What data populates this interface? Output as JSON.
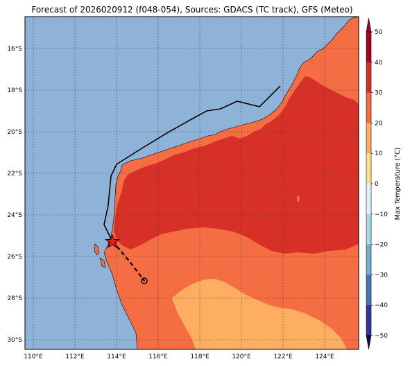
{
  "title": "Forecast of 2026020912 (f048-054), Sources: GDACS (TC track), GFS (Meteo)",
  "map": {
    "lat_labels": [
      "16°S",
      "18°S",
      "20°S",
      "22°S",
      "24°S",
      "26°S",
      "28°S",
      "30°S"
    ],
    "lon_labels": [
      "110°E",
      "112°E",
      "114°E",
      "116°E",
      "118°E",
      "120°E",
      "122°E",
      "124°E"
    ],
    "gridlines": "dotted",
    "ocean_color": "#8fb3d8"
  },
  "colorbar": {
    "label": "Max Temperature (°C)",
    "ticks": [
      "50",
      "40",
      "30",
      "20",
      "10",
      "0",
      "−10",
      "−20",
      "−30",
      "−40",
      "−50"
    ],
    "colors": [
      "#9e0142",
      "#b40f26",
      "#d73027",
      "#f46d43",
      "#fdae61",
      "#fee090",
      "#ffffbf",
      "#e0f3f8",
      "#abd9e9",
      "#74add1",
      "#4575b4",
      "#313695",
      "#1a1a7a"
    ]
  },
  "legend_colors": {
    "band_20_30": "#f46d43",
    "band_30_40": "#d73027",
    "band_10_20": "#fdae61"
  },
  "track": {
    "observed_style": "solid",
    "forecast_style": "dashed",
    "current_marker": "star",
    "forecast_marker": "circle"
  }
}
